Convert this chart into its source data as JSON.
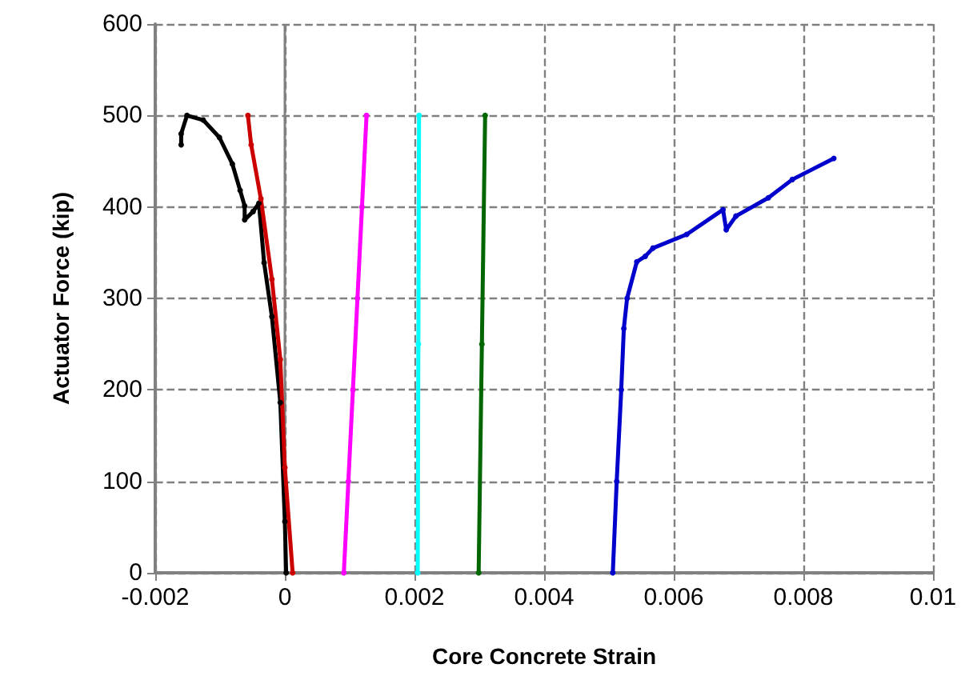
{
  "chart_data": {
    "type": "line",
    "xlabel": "Core Concrete Strain",
    "ylabel": "Actuator Force (kip)",
    "xlim": [
      -0.002,
      0.01
    ],
    "xticks": [
      -0.002,
      0,
      0.002,
      0.004,
      0.006,
      0.008,
      0.01
    ],
    "ylim": [
      0,
      600
    ],
    "yticks": [
      0,
      100,
      200,
      300,
      400,
      500,
      600
    ],
    "grid": true,
    "marker": "circle",
    "line_style": "solid",
    "ref_lines": [
      {
        "axis": "x",
        "value": 0,
        "color": "#808080",
        "line_style": "solid"
      }
    ],
    "series": [
      {
        "color": "#000000",
        "x": [
          2e-05,
          0,
          -7e-05,
          -0.0002,
          -0.00032,
          -0.0004,
          -0.00049,
          -0.00062,
          -0.00062,
          -0.00069,
          -0.00081,
          -0.00101,
          -0.00126,
          -0.00151,
          -0.0016,
          -0.0016
        ],
        "values": [
          0,
          56,
          186,
          280,
          339,
          404,
          395,
          386,
          401,
          418,
          447,
          476,
          495,
          500,
          480,
          468
        ]
      },
      {
        "color": "#cc0000",
        "x": [
          0.00012,
          0,
          -7e-05,
          -0.0002,
          -0.00037,
          -0.00052,
          -0.00057
        ],
        "values": [
          0,
          115,
          233,
          321,
          409,
          468,
          500
        ]
      },
      {
        "color": "#ff00ff",
        "x": [
          0.00091,
          0.00098,
          0.00105,
          0.00112,
          0.00119,
          0.00126
        ],
        "values": [
          0,
          100,
          200,
          300,
          400,
          500
        ]
      },
      {
        "color": "#00ffff",
        "x": [
          0.00205,
          0.00206,
          0.00207
        ],
        "values": [
          0,
          250,
          500
        ]
      },
      {
        "color": "#006600",
        "x": [
          0.00299,
          0.00304,
          0.00309
        ],
        "values": [
          0,
          250,
          500
        ]
      },
      {
        "color": "#0000cc",
        "x": [
          0.00506,
          0.00512,
          0.00519,
          0.00523,
          0.00528,
          0.00543,
          0.00556,
          0.00568,
          0.0062,
          0.00676,
          0.00681,
          0.00696,
          0.00746,
          0.00783,
          0.00847
        ],
        "values": [
          0,
          100,
          200,
          267,
          300,
          340,
          346,
          355,
          370,
          397,
          375,
          390,
          410,
          430,
          453
        ]
      }
    ]
  }
}
